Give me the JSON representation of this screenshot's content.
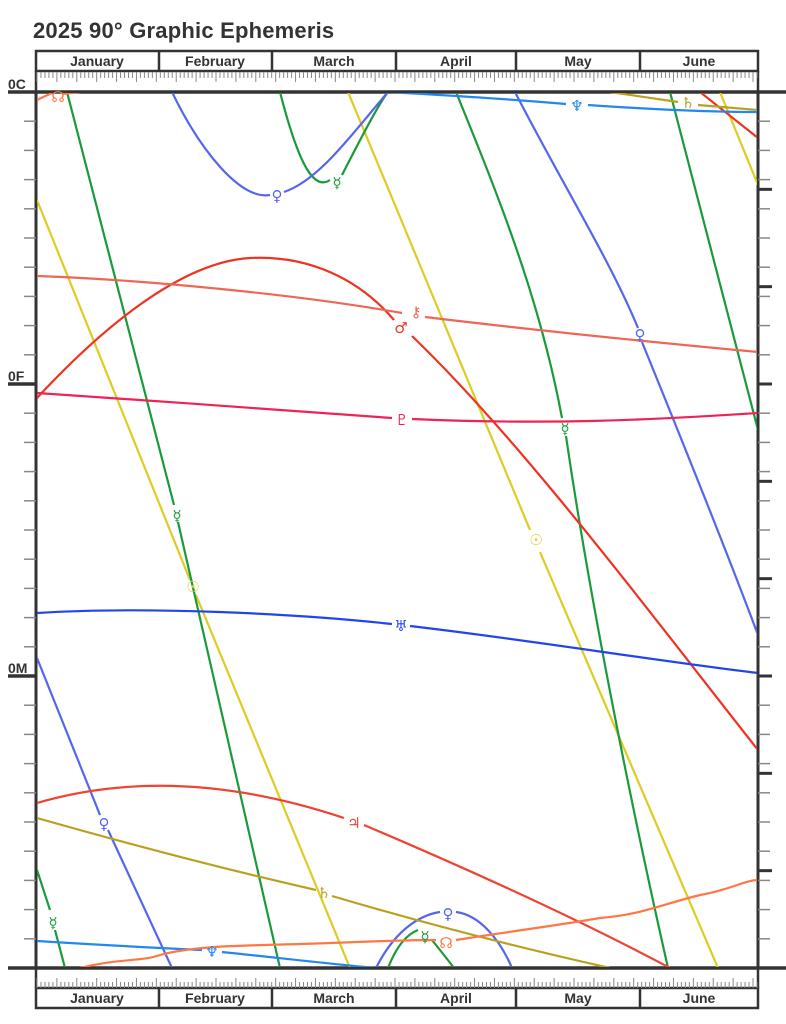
{
  "title": "2025 90° Graphic Ephemeris",
  "chart_data": {
    "type": "line",
    "title": "2025 90° Graphic Ephemeris",
    "xlabel": "",
    "ylabel": "",
    "x_axis": {
      "categories": [
        "January",
        "February",
        "March",
        "April",
        "May",
        "June"
      ],
      "position": "top and bottom",
      "minor_ticks": "daily"
    },
    "y_axis": {
      "labels": [
        "0C",
        "0F",
        "0M"
      ],
      "range_degrees": [
        0,
        90
      ],
      "major_tick_every_degrees": 10,
      "minor_tick_every_degrees": 1,
      "note": "0C = 0° Cardinal, 0F = 0° Fixed, 0M = 0° Mutable (30° segments)"
    },
    "grid": false,
    "legend": "none (glyph labels on curves)",
    "series": [
      {
        "name": "Sun",
        "glyph": "☉",
        "color": "#ddcc22"
      },
      {
        "name": "Mercury",
        "glyph": "☿",
        "color": "#1a9a3a"
      },
      {
        "name": "Venus",
        "glyph": "♀",
        "color": "#5566ee"
      },
      {
        "name": "Mars",
        "glyph": "♂",
        "color": "#ee3322"
      },
      {
        "name": "Jupiter",
        "glyph": "♃",
        "color": "#ee4433"
      },
      {
        "name": "Saturn",
        "glyph": "♄",
        "color": "#bba020"
      },
      {
        "name": "Uranus",
        "glyph": "♅",
        "color": "#2244ee"
      },
      {
        "name": "Neptune",
        "glyph": "♆",
        "color": "#2288ee"
      },
      {
        "name": "Pluto",
        "glyph": "♇",
        "color": "#ee2255"
      },
      {
        "name": "Chiron",
        "glyph": "⚷",
        "color": "#ee6655"
      },
      {
        "name": "Node",
        "glyph": "☊",
        "color": "#ff7744"
      }
    ]
  },
  "axis": {
    "months": [
      "January",
      "February",
      "March",
      "April",
      "May",
      "June"
    ],
    "y_labels": {
      "c": "0C",
      "f": "0F",
      "m": "0M"
    }
  },
  "glyphs": {
    "sun": "☉",
    "mercury": "☿",
    "venus": "♀",
    "mars": "♂",
    "jupiter": "♃",
    "saturn": "♄",
    "uranus": "♅",
    "neptune": "♆",
    "pluto": "♇",
    "chiron": "⚷",
    "node": "☊"
  }
}
